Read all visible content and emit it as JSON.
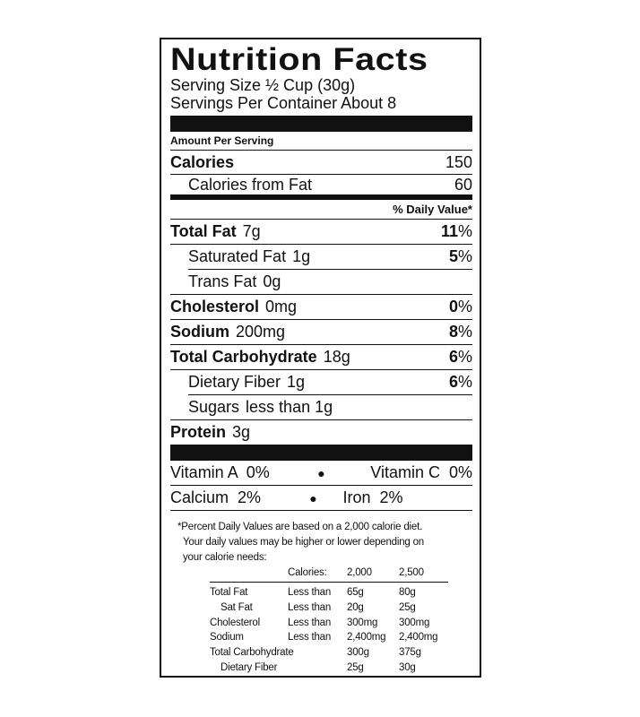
{
  "title": "Nutrition Facts",
  "serving_size": "Serving Size ½ Cup (30g)",
  "servings_per_container": "Servings Per Container About 8",
  "amount_per_serving": "Amount Per Serving",
  "calories": {
    "label": "Calories",
    "value": "150"
  },
  "calories_from_fat": {
    "label": "Calories from Fat",
    "value": "60"
  },
  "daily_value_header": "% Daily Value*",
  "nutrients": [
    {
      "label": "Total Fat",
      "amount": "7g",
      "dv": "11",
      "bold": true,
      "indent": false
    },
    {
      "label": "Saturated Fat",
      "amount": "1g",
      "dv": "5",
      "bold": false,
      "indent": true
    },
    {
      "label": "Trans Fat",
      "amount": "0g",
      "dv": "",
      "bold": false,
      "indent": true
    },
    {
      "label": "Cholesterol",
      "amount": "0mg",
      "dv": "0",
      "bold": true,
      "indent": false
    },
    {
      "label": "Sodium",
      "amount": "200mg",
      "dv": "8",
      "bold": true,
      "indent": false
    },
    {
      "label": "Total Carbohydrate",
      "amount": "18g",
      "dv": "6",
      "bold": true,
      "indent": false
    },
    {
      "label": "Dietary Fiber",
      "amount": "1g",
      "dv": "6",
      "bold": false,
      "indent": true
    },
    {
      "label": "Sugars",
      "amount": "less than 1g",
      "dv": "",
      "bold": false,
      "indent": true
    },
    {
      "label": "Protein",
      "amount": "3g",
      "dv": "",
      "bold": true,
      "indent": false
    }
  ],
  "vitamins": [
    [
      "Vitamin A  0%",
      "Vitamin C  0%"
    ],
    [
      "Calcium  2%",
      "Iron  2%"
    ]
  ],
  "footnote": [
    "*Percent Daily Values are based on a 2,000 calorie diet.",
    "Your daily values may be higher or lower depending on",
    "your calorie needs:"
  ],
  "dv_table": {
    "header": [
      "",
      "Calories:",
      "2,000",
      "2,500"
    ],
    "rows": [
      [
        "Total Fat",
        "Less than",
        "65g",
        "80g"
      ],
      [
        "Sat Fat",
        "Less than",
        "20g",
        "25g"
      ],
      [
        "Cholesterol",
        "Less than",
        "300mg",
        "300mg"
      ],
      [
        "Sodium",
        "Less than",
        "2,400mg",
        "2,400mg"
      ],
      [
        "Total Carbohydrate",
        "",
        "300g",
        "375g"
      ],
      [
        "Dietary Fiber",
        "",
        "25g",
        "30g"
      ]
    ]
  }
}
